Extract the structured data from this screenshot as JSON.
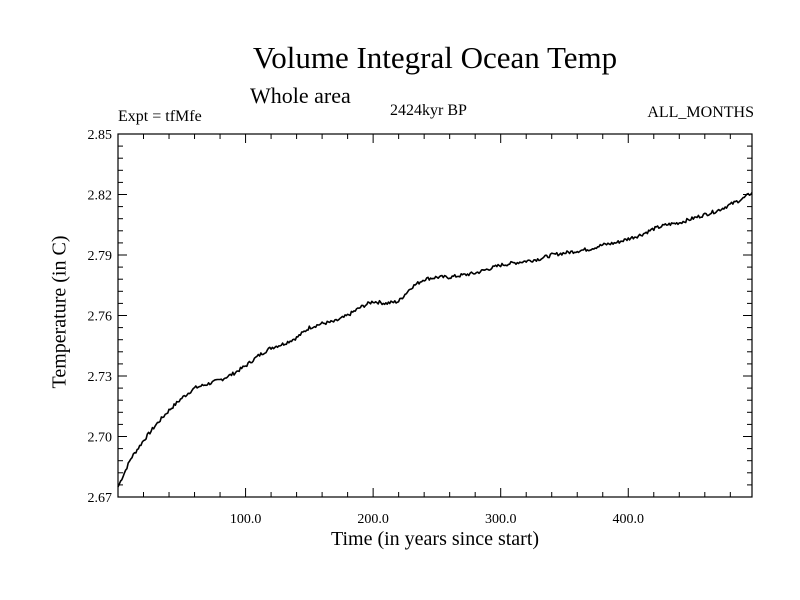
{
  "chart_data": {
    "type": "line",
    "title": "Volume Integral Ocean Temp",
    "subtitle": "Whole area",
    "annotations": {
      "experiment": "Expt = tfMfe",
      "period": "2424kyr BP",
      "months": "ALL_MONTHS"
    },
    "xlabel": "Time (in years since start)",
    "ylabel": "Temperature (in C)",
    "xlim": [
      0,
      497
    ],
    "ylim": [
      2.67,
      2.85
    ],
    "x_ticks": [
      100,
      200,
      300,
      400
    ],
    "x_tick_labels": [
      "100.0",
      "200.0",
      "300.0",
      "400.0"
    ],
    "y_ticks": [
      2.67,
      2.7,
      2.73,
      2.76,
      2.79,
      2.82,
      2.85
    ],
    "y_tick_labels": [
      "2.67",
      "2.70",
      "2.73",
      "2.76",
      "2.79",
      "2.82",
      "2.85"
    ],
    "series": [
      {
        "name": "Volume Integral Ocean Temp",
        "x": [
          0,
          10,
          20,
          30,
          40,
          50,
          60,
          70,
          80,
          90,
          100,
          110,
          120,
          130,
          140,
          150,
          160,
          170,
          180,
          190,
          200,
          210,
          220,
          230,
          240,
          250,
          260,
          270,
          280,
          290,
          300,
          310,
          320,
          330,
          340,
          350,
          360,
          370,
          380,
          390,
          400,
          410,
          420,
          430,
          440,
          450,
          460,
          470,
          480,
          490,
          497
        ],
        "y": [
          2.675,
          2.689,
          2.698,
          2.706,
          2.713,
          2.719,
          2.724,
          2.726,
          2.728,
          2.731,
          2.735,
          2.74,
          2.744,
          2.746,
          2.749,
          2.754,
          2.756,
          2.757,
          2.76,
          2.764,
          2.767,
          2.766,
          2.767,
          2.774,
          2.778,
          2.779,
          2.779,
          2.78,
          2.781,
          2.783,
          2.785,
          2.786,
          2.787,
          2.788,
          2.79,
          2.791,
          2.792,
          2.793,
          2.795,
          2.796,
          2.798,
          2.8,
          2.803,
          2.805,
          2.806,
          2.808,
          2.81,
          2.812,
          2.815,
          2.818,
          2.821
        ]
      }
    ]
  }
}
